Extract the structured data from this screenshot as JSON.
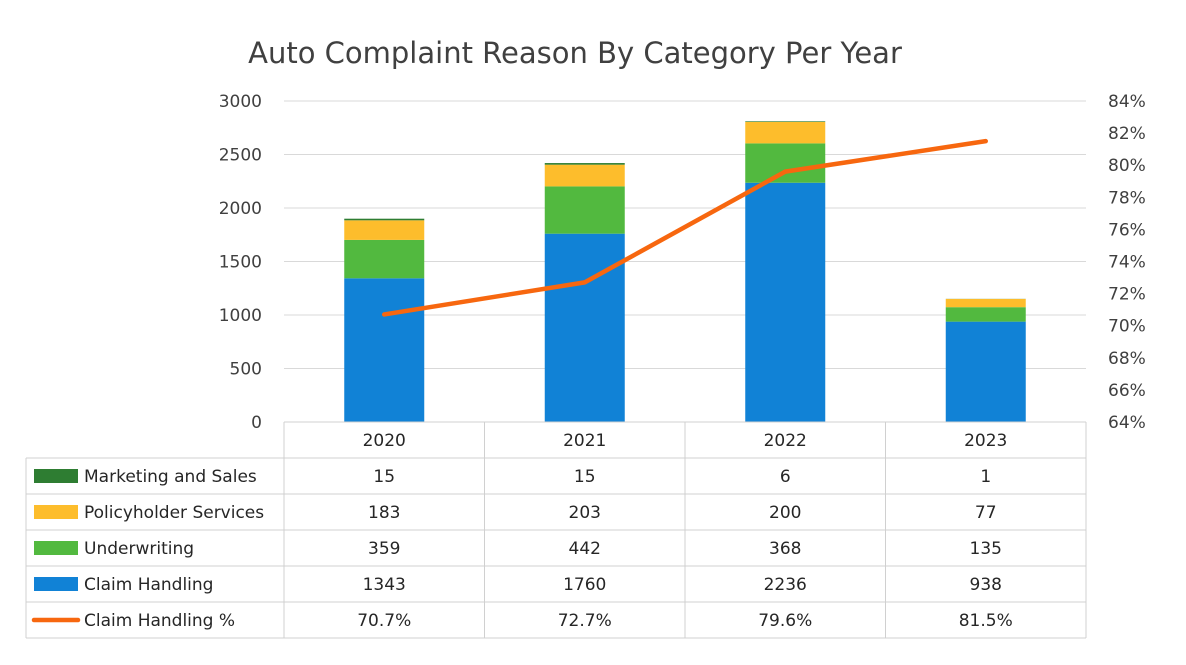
{
  "chart_data": {
    "type": "bar",
    "stacked": true,
    "title": "Auto Complaint Reason By Category Per Year",
    "categories": [
      "2020",
      "2021",
      "2022",
      "2023"
    ],
    "ylim": [
      0,
      3000
    ],
    "yticks": [
      "0",
      "500",
      "1000",
      "1500",
      "2000",
      "2500",
      "3000"
    ],
    "y2lim": [
      64,
      84
    ],
    "y2ticks": [
      "64%",
      "66%",
      "68%",
      "70%",
      "72%",
      "74%",
      "76%",
      "78%",
      "80%",
      "82%",
      "84%"
    ],
    "grid": true,
    "legend": "data-table-below",
    "series": [
      {
        "name": "Marketing and Sales",
        "kind": "bar",
        "color": "#2E7D32",
        "values": [
          15,
          15,
          6,
          1
        ],
        "labels": [
          "15",
          "15",
          "6",
          "1"
        ]
      },
      {
        "name": "Policyholder Services",
        "kind": "bar",
        "color": "#FDBD2C",
        "values": [
          183,
          203,
          200,
          77
        ],
        "labels": [
          "183",
          "203",
          "200",
          "77"
        ]
      },
      {
        "name": "Underwriting",
        "kind": "bar",
        "color": "#52B93F",
        "values": [
          359,
          442,
          368,
          135
        ],
        "labels": [
          "359",
          "442",
          "368",
          "135"
        ]
      },
      {
        "name": "Claim Handling",
        "kind": "bar",
        "color": "#1182D6",
        "values": [
          1343,
          1760,
          2236,
          938
        ],
        "labels": [
          "1343",
          "1760",
          "2236",
          "938"
        ]
      },
      {
        "name": "Claim Handling %",
        "kind": "line",
        "axis": "right",
        "color": "#F7670F",
        "values": [
          70.7,
          72.7,
          79.6,
          81.5
        ],
        "labels": [
          "70.7%",
          "72.7%",
          "79.6%",
          "81.5%"
        ]
      }
    ]
  }
}
